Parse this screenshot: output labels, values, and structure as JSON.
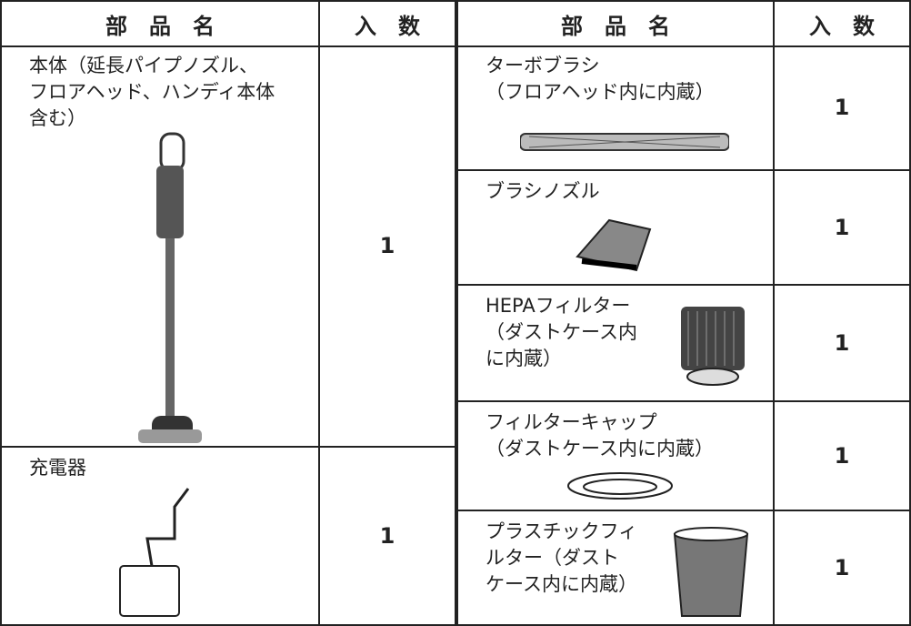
{
  "table": {
    "header": [
      "部　品　名",
      "入　数",
      "部　品　名",
      "入　数"
    ],
    "left": [
      {
        "name": [
          "本体（延長パイプノズル、",
          "フロアヘッド、ハンディ本体",
          "含む）"
        ],
        "count": 1
      },
      {
        "name": [
          "充電器"
        ],
        "count": 1
      }
    ],
    "right": [
      {
        "name": [
          "ターボブラシ",
          "（フロアヘッド内に内蔵）"
        ],
        "count": 1
      },
      {
        "name": [
          "ブラシノズル"
        ],
        "count": 1
      },
      {
        "name": [
          "HEPAフィルター",
          "（ダストケース内",
          "に内蔵）"
        ],
        "count": 1
      },
      {
        "name": [
          "フィルターキャップ",
          "（ダストケース内に内蔵）"
        ],
        "count": 1
      },
      {
        "name": [
          "プラスチックフィ",
          "ルター（ダスト",
          "ケース内に内蔵）"
        ],
        "count": 1
      }
    ]
  }
}
